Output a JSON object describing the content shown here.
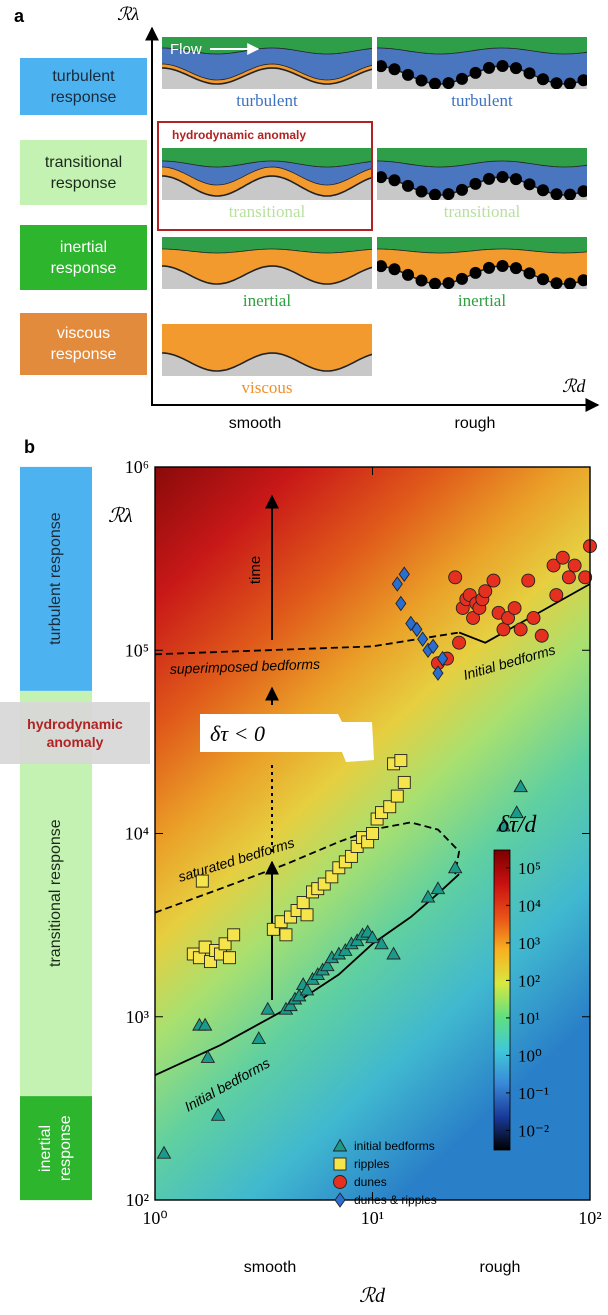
{
  "panel_a": {
    "label": "a",
    "y_axis": "ℛλ",
    "x_axis": "ℛd",
    "x_categories": [
      "smooth",
      "rough"
    ],
    "flow": "Flow",
    "anomaly": "hydrodynamic anomaly",
    "anomaly_color": "#b22222",
    "responses": [
      {
        "label": "turbulent response",
        "color": "#4db3f0",
        "text_color": "#1a2a3a"
      },
      {
        "label": "transitional response",
        "color": "#c4f2b2",
        "text_color": "#1a2a1a"
      },
      {
        "label": "inertial response",
        "color": "#2db52d",
        "text_color": "#ffffff"
      },
      {
        "label": "viscous response",
        "color": "#e38b3c",
        "text_color": "#ffffff"
      }
    ],
    "cells": [
      {
        "label": "turbulent",
        "color": "#3d72c2"
      },
      {
        "label": "turbulent",
        "color": "#3d72c2"
      },
      {
        "label": "transitional",
        "color": "#b8e0a0"
      },
      {
        "label": "transitional",
        "color": "#b8e0a0"
      },
      {
        "label": "inertial",
        "color": "#2ea040"
      },
      {
        "label": "inertial",
        "color": "#2ea040"
      },
      {
        "label": "viscous",
        "color": "#f0902a"
      }
    ]
  },
  "chart_data": {
    "type": "scatter",
    "panel_label": "b",
    "x_label": "ℛd",
    "y_label": "ℛλ",
    "xscale": "log",
    "yscale": "log",
    "xlim": [
      1,
      100
    ],
    "ylim": [
      100,
      1000000
    ],
    "xticks": [
      {
        "value": 1,
        "label": "10⁰"
      },
      {
        "value": 10,
        "label": "10¹"
      },
      {
        "value": 100,
        "label": "10²"
      }
    ],
    "yticks": [
      {
        "value": 100,
        "label": "10²"
      },
      {
        "value": 1000,
        "label": "10³"
      },
      {
        "value": 10000,
        "label": "10⁴"
      },
      {
        "value": 100000,
        "label": "10⁵"
      },
      {
        "value": 1000000,
        "label": "10⁶"
      }
    ],
    "x_categories": [
      "smooth",
      "rough"
    ],
    "response_bands": [
      {
        "label": "turbulent response",
        "color": "#4db3f0",
        "range": [
          60000,
          1000000
        ]
      },
      {
        "label": "transitional response",
        "color": "#c4f2b2",
        "range": [
          370,
          60000
        ]
      },
      {
        "label": "inertial response",
        "color": "#2db52d",
        "range": [
          100,
          370
        ]
      }
    ],
    "anomaly": {
      "label": "hydrodynamic anomaly",
      "range": [
        24000,
        52000
      ],
      "color": "#b22222"
    },
    "series": [
      {
        "name": "initial bedforms",
        "marker": "triangle",
        "color": "#1a9a8a",
        "x": [
          1.1,
          1.6,
          1.7,
          1.75,
          1.95,
          3.0,
          3.3,
          4.0,
          4.2,
          4.4,
          4.6,
          4.8,
          5.0,
          5.3,
          5.6,
          5.9,
          6.2,
          6.5,
          7.0,
          7.5,
          8.0,
          8.5,
          9.0,
          9.5,
          10.0,
          11.0,
          12.5,
          18,
          20,
          24,
          40,
          46,
          48
        ],
        "y": [
          180,
          900,
          900,
          600,
          290,
          760,
          1100,
          1100,
          1150,
          1250,
          1300,
          1500,
          1400,
          1600,
          1700,
          1800,
          1900,
          2100,
          2200,
          2300,
          2500,
          2600,
          2800,
          2900,
          2700,
          2500,
          2200,
          4500,
          5000,
          6500,
          11000,
          13000,
          18000
        ]
      },
      {
        "name": "ripples",
        "marker": "square",
        "color": "#f5e44a",
        "x": [
          1.5,
          1.6,
          1.7,
          1.8,
          1.9,
          2.0,
          2.1,
          2.2,
          2.3,
          1.65,
          3.5,
          3.8,
          4.0,
          4.2,
          4.5,
          4.8,
          5.0,
          5.3,
          5.6,
          6.0,
          6.5,
          7.0,
          7.5,
          8.0,
          8.5,
          9.0,
          9.5,
          10.0,
          10.5,
          11.0,
          12.0,
          13.0,
          14.0,
          12.5,
          13.5
        ],
        "y": [
          2200,
          2100,
          2400,
          2000,
          2300,
          2200,
          2500,
          2100,
          2800,
          5500,
          3000,
          3300,
          2800,
          3500,
          3800,
          4200,
          3600,
          4800,
          5000,
          5300,
          5800,
          6500,
          7000,
          7500,
          8500,
          9500,
          9000,
          10000,
          12000,
          13000,
          14000,
          16000,
          19000,
          24000,
          25000
        ]
      },
      {
        "name": "dunes",
        "marker": "circle",
        "color": "#e53020",
        "x": [
          20,
          22,
          24,
          25,
          26,
          27,
          28,
          29,
          30,
          31,
          32,
          33,
          36,
          38,
          40,
          42,
          45,
          48,
          52,
          55,
          60,
          68,
          70,
          75,
          80,
          85,
          95,
          100
        ],
        "y": [
          85000,
          90000,
          250000,
          110000,
          170000,
          190000,
          200000,
          150000,
          180000,
          170000,
          190000,
          210000,
          240000,
          160000,
          130000,
          150000,
          170000,
          130000,
          240000,
          150000,
          120000,
          290000,
          200000,
          320000,
          250000,
          290000,
          250000,
          370000
        ]
      },
      {
        "name": "dunes & ripples",
        "marker": "diamond",
        "color": "#2a6ed0",
        "x": [
          13,
          14,
          13.5,
          15,
          16,
          17,
          18,
          19,
          21,
          20
        ],
        "y": [
          230000,
          260000,
          180000,
          140000,
          130000,
          115000,
          100000,
          105000,
          90000,
          75000
        ]
      }
    ],
    "curves": [
      {
        "style": "solid",
        "x": [
          1,
          2,
          4,
          7,
          10,
          15,
          20,
          25
        ],
        "y": [
          480,
          700,
          1100,
          1700,
          2500,
          3500,
          4700,
          6000
        ]
      },
      {
        "style": "dashed",
        "x": [
          1,
          2,
          4,
          7,
          10,
          15,
          20,
          25,
          24
        ],
        "y": [
          3700,
          5000,
          6800,
          9000,
          10500,
          11500,
          10500,
          8000,
          6000
        ]
      },
      {
        "style": "dashed",
        "x": [
          1,
          10,
          25
        ],
        "y": [
          95000,
          105000,
          125000
        ]
      },
      {
        "style": "solid",
        "x": [
          25,
          33,
          100
        ],
        "y": [
          125000,
          110000,
          230000
        ]
      }
    ],
    "annotations": {
      "time": "time",
      "superimposed": "superimposed bedforms",
      "initial_upper": "Initial bedforms",
      "saturated": "saturated bedforms",
      "initial_lower": "Initial bedforms",
      "negative": "δτ < 0"
    },
    "colorbar": {
      "label": "δτ/d",
      "lim": [
        0.003,
        300000
      ],
      "colors": [
        "#000000",
        "#1a3a9a",
        "#3a8ad8",
        "#40c8d8",
        "#60e080",
        "#d8e840",
        "#f8b020",
        "#e85018",
        "#c81010",
        "#7a0000"
      ],
      "ticks": [
        {
          "value": 0.01,
          "label": "10⁻²"
        },
        {
          "value": 0.1,
          "label": "10⁻¹"
        },
        {
          "value": 1,
          "label": "10⁰"
        },
        {
          "value": 10,
          "label": "10¹"
        },
        {
          "value": 100,
          "label": "10²"
        },
        {
          "value": 1000,
          "label": "10³"
        },
        {
          "value": 10000,
          "label": "10⁴"
        },
        {
          "value": 100000,
          "label": "10⁵"
        }
      ]
    }
  }
}
